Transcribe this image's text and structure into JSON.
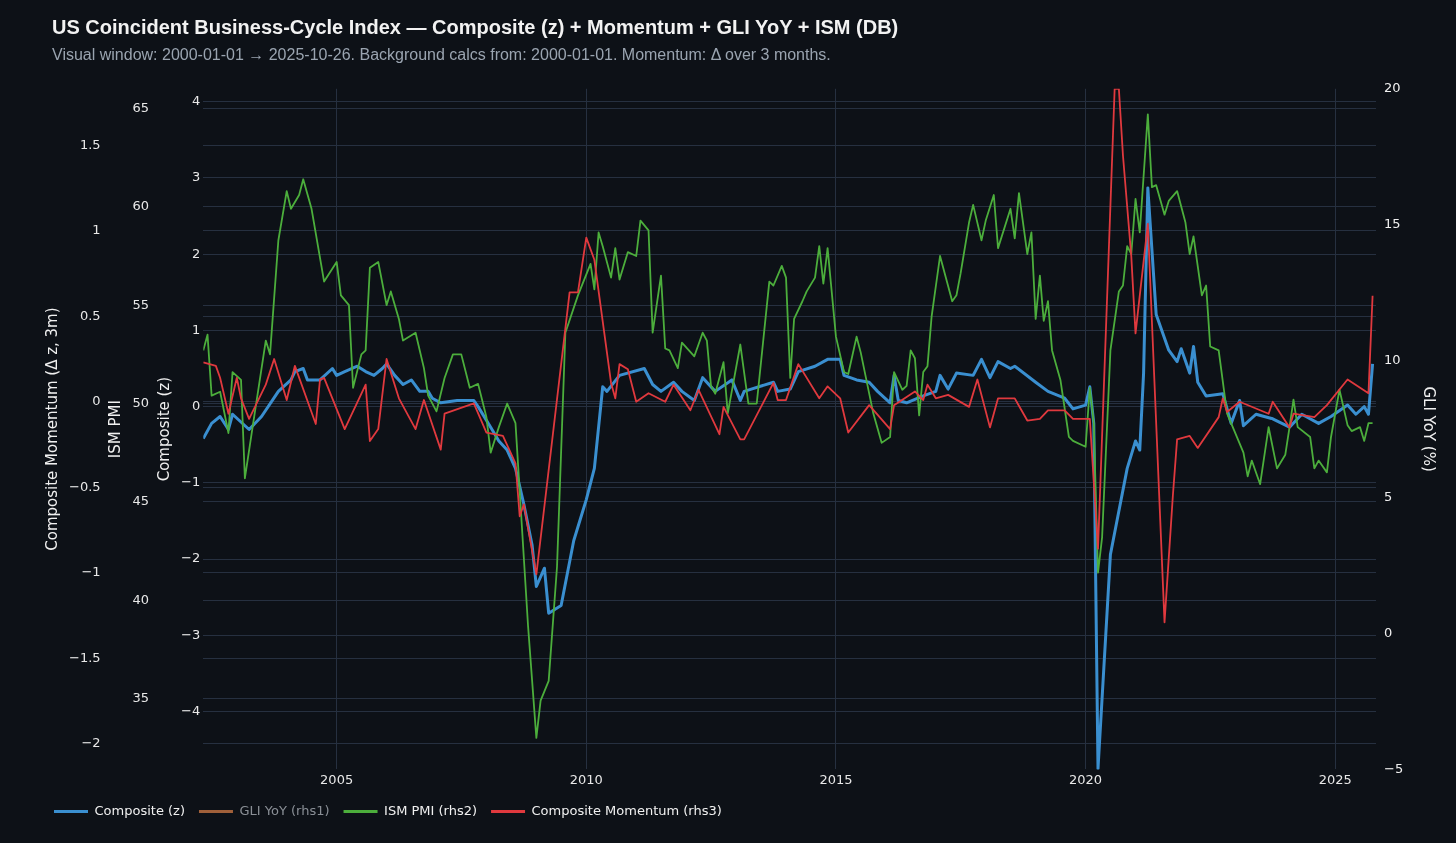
{
  "chart_data": {
    "type": "line",
    "title": "US Coincident Business-Cycle Index — Composite (z) + Momentum + GLI YoY + ISM (DB)",
    "subtitle": "Visual window: 2000-01-01 → 2025-10-26.  Background calcs from: 2000-01-01.  Momentum: Δ over 3 months.",
    "ylabel": "Composite (z)",
    "y2label": "Composite Momentum (Δ z, 3m)",
    "y3label": "ISM PMI",
    "annotations": [
      "GLI YoY (%)",
      "−5",
      "0",
      "5",
      "10",
      "15",
      "20"
    ],
    "xlim": [
      "2002-05-01",
      "2025-10-26"
    ],
    "xticks": [
      "2005",
      "2010",
      "2015",
      "2020",
      "2025"
    ],
    "ylim": [
      -4.76,
      4.17
    ],
    "yticks": [
      -4,
      -3,
      -2,
      -1,
      0,
      1,
      2,
      3,
      4
    ],
    "y3lim": [
      31.4,
      66
    ],
    "y3ticks": [
      35,
      40,
      45,
      50,
      55,
      60,
      65
    ],
    "y2lim": [
      -2.15,
      1.83
    ],
    "y2ticks": [
      -2,
      -1.5,
      -1,
      -0.5,
      0,
      0.5,
      1,
      1.5
    ],
    "grid": true,
    "legend": "bottom left",
    "series": [
      {
        "name": "Composite (z)",
        "color": "#3a8fd0",
        "x": [
          "2002-05",
          "2002-07",
          "2002-09",
          "2002-11",
          "2002-12",
          "2003-04",
          "2003-07",
          "2003-11",
          "2004-02",
          "2004-03",
          "2004-05",
          "2004-06",
          "2004-09",
          "2004-12",
          "2005-01",
          "2005-03",
          "2005-06",
          "2005-08",
          "2005-10",
          "2005-12",
          "2006-01",
          "2006-03",
          "2006-05",
          "2006-07",
          "2006-09",
          "2006-11",
          "2006-12",
          "2007-02",
          "2007-06",
          "2007-10",
          "2007-11",
          "2008-02",
          "2008-04",
          "2008-06",
          "2008-08",
          "2008-10",
          "2008-12",
          "2009-01",
          "2009-03",
          "2009-04",
          "2009-07",
          "2009-10",
          "2010-01",
          "2010-03",
          "2010-05",
          "2010-06",
          "2010-09",
          "2011-03",
          "2011-05",
          "2011-07",
          "2011-10",
          "2011-12",
          "2012-03",
          "2012-05",
          "2012-08",
          "2012-12",
          "2013-02",
          "2013-03",
          "2013-10",
          "2013-11",
          "2014-02",
          "2014-04",
          "2014-08",
          "2014-11",
          "2015-02",
          "2015-03",
          "2015-06",
          "2015-09",
          "2015-11",
          "2016-02",
          "2016-03",
          "2016-04",
          "2016-06",
          "2016-10",
          "2017-01",
          "2017-02",
          "2017-04",
          "2017-06",
          "2017-10",
          "2017-12",
          "2018-02",
          "2018-04",
          "2018-07",
          "2018-08",
          "2019-01",
          "2019-04",
          "2019-08",
          "2019-10",
          "2020-01",
          "2020-02",
          "2020-03",
          "2020-04",
          "2020-07",
          "2020-11",
          "2021-01",
          "2021-02",
          "2021-03",
          "2021-04",
          "2021-06",
          "2021-09",
          "2021-11",
          "2021-12",
          "2022-02",
          "2022-03",
          "2022-04",
          "2022-06",
          "2022-10",
          "2022-12",
          "2023-02",
          "2023-03",
          "2023-06",
          "2023-10",
          "2024-02",
          "2024-05",
          "2024-09",
          "2024-12",
          "2025-04",
          "2025-06",
          "2025-08",
          "2025-09",
          "2025-10"
        ],
        "values": [
          -0.42,
          -0.22,
          -0.13,
          -0.3,
          -0.1,
          -0.3,
          -0.13,
          0.2,
          0.35,
          0.46,
          0.5,
          0.35,
          0.35,
          0.5,
          0.41,
          0.46,
          0.53,
          0.46,
          0.41,
          0.5,
          0.56,
          0.41,
          0.29,
          0.35,
          0.2,
          0.2,
          0.11,
          0.05,
          0.08,
          0.08,
          0.0,
          -0.27,
          -0.45,
          -0.57,
          -0.81,
          -1.28,
          -1.82,
          -2.36,
          -2.12,
          -2.71,
          -2.61,
          -1.76,
          -1.22,
          -0.81,
          0.26,
          0.2,
          0.41,
          0.5,
          0.29,
          0.2,
          0.32,
          0.2,
          0.08,
          0.38,
          0.2,
          0.35,
          0.08,
          0.2,
          0.32,
          0.2,
          0.23,
          0.46,
          0.53,
          0.62,
          0.62,
          0.41,
          0.35,
          0.32,
          0.2,
          0.05,
          0.41,
          0.08,
          0.05,
          0.14,
          0.2,
          0.41,
          0.23,
          0.44,
          0.41,
          0.62,
          0.38,
          0.59,
          0.5,
          0.53,
          0.32,
          0.2,
          0.11,
          -0.03,
          0.02,
          0.26,
          -0.22,
          -4.75,
          -1.94,
          -0.81,
          -0.45,
          -0.57,
          0.44,
          2.87,
          1.21,
          0.74,
          0.59,
          0.76,
          0.44,
          0.79,
          0.32,
          0.14,
          0.17,
          -0.22,
          0.08,
          -0.25,
          -0.1,
          -0.16,
          -0.27,
          -0.1,
          -0.22,
          -0.13,
          0.02,
          -0.1,
          0.0,
          -0.1,
          0.56
        ]
      },
      {
        "name": "GLI YoY (rhs1)",
        "color": "#a0603a"
      },
      {
        "name": "ISM PMI (rhs2)",
        "color": "#4cae3c",
        "axis": "y3",
        "x": [
          "2002-05",
          "2002-06",
          "2002-07",
          "2002-09",
          "2002-11",
          "2002-12",
          "2003-02",
          "2003-03",
          "2003-05",
          "2003-08",
          "2003-09",
          "2003-11",
          "2004-01",
          "2004-02",
          "2004-04",
          "2004-05",
          "2004-07",
          "2004-10",
          "2005-01",
          "2005-02",
          "2005-04",
          "2005-05",
          "2005-07",
          "2005-08",
          "2005-09",
          "2005-11",
          "2006-01",
          "2006-02",
          "2006-04",
          "2006-05",
          "2006-08",
          "2006-10",
          "2006-11",
          "2007-01",
          "2007-03",
          "2007-05",
          "2007-07",
          "2007-09",
          "2007-11",
          "2008-01",
          "2008-02",
          "2008-04",
          "2008-06",
          "2008-08",
          "2008-11",
          "2009-01",
          "2009-02",
          "2009-04",
          "2009-06",
          "2009-08",
          "2009-11",
          "2010-02",
          "2010-03",
          "2010-04",
          "2010-05",
          "2010-07",
          "2010-08",
          "2010-09",
          "2010-11",
          "2011-01",
          "2011-02",
          "2011-04",
          "2011-05",
          "2011-07",
          "2011-08",
          "2011-09",
          "2011-11",
          "2011-12",
          "2012-03",
          "2012-05",
          "2012-06",
          "2012-07",
          "2012-08",
          "2012-10",
          "2012-11",
          "2013-02",
          "2013-04",
          "2013-06",
          "2013-09",
          "2013-10",
          "2013-12",
          "2014-01",
          "2014-02",
          "2014-03",
          "2014-05",
          "2014-06",
          "2014-08",
          "2014-09",
          "2014-10",
          "2014-11",
          "2015-01",
          "2015-03",
          "2015-04",
          "2015-06",
          "2015-07",
          "2015-10",
          "2015-12",
          "2016-02",
          "2016-03",
          "2016-05",
          "2016-06",
          "2016-07",
          "2016-08",
          "2016-09",
          "2016-10",
          "2016-11",
          "2016-12",
          "2017-02",
          "2017-05",
          "2017-06",
          "2017-07",
          "2017-09",
          "2017-10",
          "2017-12",
          "2018-01",
          "2018-03",
          "2018-04",
          "2018-07",
          "2018-08",
          "2018-09",
          "2018-11",
          "2018-12",
          "2019-01",
          "2019-02",
          "2019-03",
          "2019-04",
          "2019-05",
          "2019-07",
          "2019-09",
          "2019-10",
          "2020-01",
          "2020-02",
          "2020-03",
          "2020-04",
          "2020-05",
          "2020-07",
          "2020-09",
          "2020-10",
          "2020-11",
          "2020-12",
          "2021-01",
          "2021-02",
          "2021-04",
          "2021-05",
          "2021-06",
          "2021-08",
          "2021-09",
          "2021-11",
          "2022-01",
          "2022-02",
          "2022-03",
          "2022-05",
          "2022-06",
          "2022-07",
          "2022-09",
          "2022-11",
          "2023-03",
          "2023-04",
          "2023-05",
          "2023-07",
          "2023-09",
          "2023-11",
          "2024-01",
          "2024-02",
          "2024-03",
          "2024-04",
          "2024-07",
          "2024-08",
          "2024-09",
          "2024-11",
          "2024-12",
          "2025-02",
          "2025-04",
          "2025-05",
          "2025-07",
          "2025-08",
          "2025-09",
          "2025-10"
        ],
        "values": [
          52.7,
          53.5,
          50.4,
          50.6,
          48.5,
          51.6,
          51.2,
          46.2,
          49.0,
          53.2,
          52.5,
          58.3,
          60.8,
          59.9,
          60.6,
          61.4,
          59.9,
          56.2,
          57.2,
          55.5,
          55.0,
          50.8,
          52.5,
          52.7,
          56.9,
          57.2,
          55.0,
          55.7,
          54.3,
          53.2,
          53.6,
          51.8,
          50.4,
          49.6,
          51.3,
          52.5,
          52.5,
          50.8,
          51.0,
          49.3,
          47.5,
          48.8,
          50.0,
          49.0,
          38.7,
          33.0,
          34.9,
          35.9,
          41.7,
          53.6,
          55.5,
          57.1,
          55.8,
          58.7,
          58.0,
          56.4,
          57.9,
          56.3,
          57.7,
          57.5,
          59.3,
          58.8,
          53.6,
          56.5,
          52.8,
          52.7,
          51.8,
          53.1,
          52.4,
          53.6,
          53.2,
          50.9,
          50.5,
          52.1,
          49.5,
          53.0,
          50.0,
          50.0,
          56.2,
          56.0,
          57.0,
          56.4,
          51.3,
          54.3,
          55.2,
          55.7,
          56.4,
          58.0,
          56.1,
          57.9,
          53.4,
          51.6,
          51.5,
          53.4,
          52.6,
          49.5,
          48.0,
          48.3,
          51.6,
          50.7,
          50.9,
          52.7,
          52.3,
          49.4,
          51.6,
          51.9,
          54.4,
          57.5,
          55.2,
          55.5,
          56.6,
          59.2,
          60.1,
          58.3,
          59.3,
          60.6,
          57.9,
          59.9,
          58.4,
          60.7,
          57.6,
          58.7,
          54.3,
          56.5,
          54.2,
          55.2,
          52.7,
          51.2,
          48.3,
          48.1,
          47.8,
          50.8,
          49.0,
          41.4,
          43.2,
          52.7,
          55.7,
          56.0,
          58.0,
          57.6,
          60.4,
          58.7,
          64.7,
          61.0,
          61.1,
          59.6,
          60.3,
          60.8,
          59.2,
          57.6,
          58.5,
          55.5,
          56.0,
          52.9,
          52.7,
          49.5,
          47.5,
          46.3,
          47.1,
          45.9,
          48.8,
          46.7,
          47.4,
          48.8,
          50.2,
          48.8,
          48.3,
          46.7,
          47.1,
          46.5,
          48.3,
          50.7,
          48.9,
          48.6,
          48.8,
          48.1,
          49.0,
          49.0
        ]
      },
      {
        "name": "Composite Momentum (rhs3)",
        "color": "#e0393e",
        "axis": "y2",
        "x": [
          "2002-05",
          "2002-08",
          "2002-09",
          "2002-11",
          "2003-01",
          "2003-02",
          "2003-04",
          "2003-08",
          "2003-10",
          "2004-01",
          "2004-03",
          "2004-08",
          "2004-09",
          "2004-10",
          "2005-03",
          "2005-08",
          "2005-09",
          "2005-11",
          "2006-01",
          "2006-04",
          "2006-08",
          "2006-10",
          "2007-02",
          "2007-03",
          "2007-10",
          "2008-01",
          "2008-05",
          "2008-08",
          "2008-09",
          "2008-10",
          "2009-01",
          "2009-09",
          "2009-11",
          "2010-01",
          "2010-03",
          "2010-07",
          "2010-08",
          "2010-09",
          "2010-11",
          "2011-01",
          "2011-04",
          "2011-08",
          "2011-10",
          "2012-02",
          "2012-04",
          "2012-09",
          "2012-10",
          "2013-02",
          "2013-03",
          "2013-10",
          "2013-11",
          "2014-01",
          "2014-04",
          "2014-09",
          "2014-11",
          "2015-02",
          "2015-04",
          "2015-09",
          "2016-02",
          "2016-03",
          "2016-08",
          "2016-10",
          "2016-11",
          "2017-01",
          "2017-04",
          "2017-09",
          "2017-11",
          "2018-02",
          "2018-04",
          "2018-08",
          "2018-11",
          "2019-02",
          "2019-04",
          "2019-08",
          "2019-10",
          "2020-02",
          "2020-04",
          "2020-08",
          "2020-09",
          "2020-10",
          "2020-12",
          "2021-01",
          "2021-04",
          "2021-08",
          "2021-10",
          "2021-11",
          "2022-02",
          "2022-04",
          "2022-09",
          "2022-10",
          "2022-11",
          "2023-02",
          "2023-09",
          "2023-10",
          "2024-02",
          "2024-03",
          "2024-08",
          "2024-11",
          "2025-04",
          "2025-09",
          "2025-10"
        ],
        "values": [
          0.23,
          0.21,
          0.14,
          -0.07,
          0.14,
          0.02,
          -0.1,
          0.1,
          0.25,
          0.01,
          0.21,
          -0.13,
          0.13,
          0.14,
          -0.16,
          0.1,
          -0.23,
          -0.16,
          0.25,
          0.02,
          -0.16,
          0.01,
          -0.28,
          -0.07,
          -0.01,
          -0.18,
          -0.2,
          -0.36,
          -0.67,
          -0.6,
          -1.01,
          0.64,
          0.64,
          0.96,
          0.83,
          0.11,
          0.02,
          0.22,
          0.19,
          0.0,
          0.05,
          0.0,
          0.1,
          -0.05,
          0.07,
          -0.19,
          -0.03,
          -0.22,
          -0.22,
          0.11,
          0.01,
          0.01,
          0.22,
          0.02,
          0.09,
          0.02,
          -0.18,
          -0.02,
          -0.16,
          -0.02,
          0.06,
          0.01,
          0.1,
          0.02,
          0.04,
          -0.03,
          0.13,
          -0.15,
          0.02,
          0.02,
          -0.11,
          -0.1,
          -0.05,
          -0.05,
          -0.1,
          -0.1,
          -0.86,
          1.83,
          1.83,
          1.44,
          0.85,
          0.4,
          1.04,
          -1.29,
          -0.55,
          -0.22,
          -0.2,
          -0.27,
          -0.09,
          0.02,
          -0.06,
          0.0,
          -0.07,
          0.0,
          -0.15,
          -0.07,
          -0.09,
          -0.02,
          0.13,
          0.05,
          0.62
        ]
      }
    ]
  }
}
